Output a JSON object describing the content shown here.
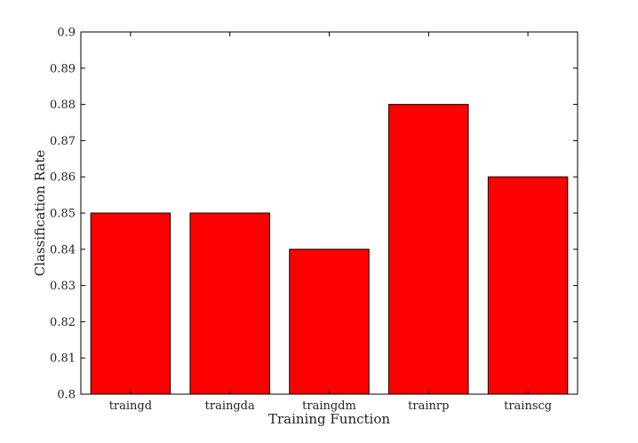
{
  "chart_data": {
    "type": "bar",
    "categories": [
      "traingd",
      "traingda",
      "traingdm",
      "trainrp",
      "trainscg"
    ],
    "values": [
      0.85,
      0.85,
      0.84,
      0.88,
      0.86
    ],
    "xlabel": "Training Function",
    "ylabel": "Classification Rate",
    "ylim": [
      0.8,
      0.9
    ],
    "yticks": [
      "0.8",
      "0.81",
      "0.82",
      "0.83",
      "0.84",
      "0.85",
      "0.86",
      "0.87",
      "0.88",
      "0.89",
      "0.9"
    ],
    "bar_color": "#ff0000",
    "grid": false
  }
}
